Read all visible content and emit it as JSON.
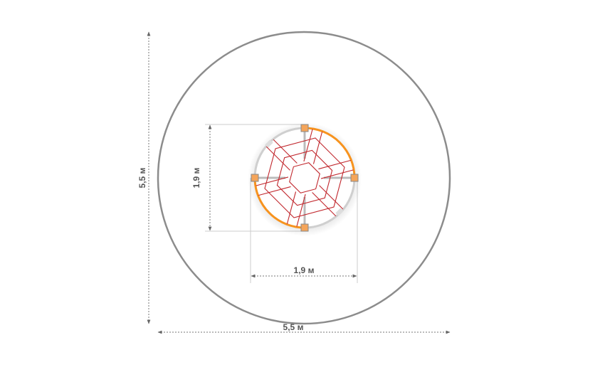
{
  "dimensions": {
    "outer_height": "5,5 м",
    "outer_width": "5,5 м",
    "inner_height": "1,9 м",
    "inner_width": "1,9 м"
  },
  "colors": {
    "outer_circle": "#8c8c8c",
    "ring_orange": "#f7931e",
    "ring_gray": "#cfcfcf",
    "net": "#c1272d",
    "post": "#f5a55a",
    "dim_line": "#777777"
  }
}
